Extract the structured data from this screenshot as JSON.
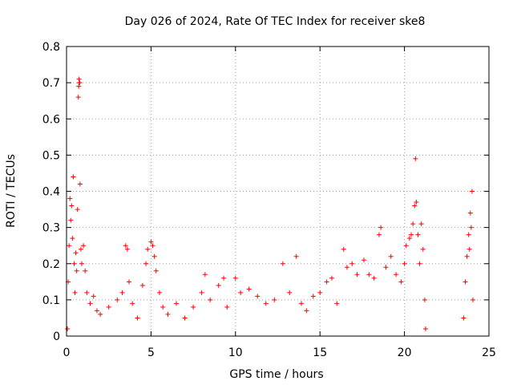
{
  "chart_data": {
    "type": "scatter",
    "title": "Day 026 of 2024, Rate Of TEC Index for receiver ske8",
    "xlabel": "GPS time / hours",
    "ylabel": "ROTI / TECUs",
    "xlim": [
      0,
      25
    ],
    "ylim": [
      0,
      0.8
    ],
    "xticks": [
      "0",
      "5",
      "10",
      "15",
      "20",
      "25"
    ],
    "yticks": [
      "0",
      "0.1",
      "0.2",
      "0.3",
      "0.4",
      "0.5",
      "0.6",
      "0.7",
      "0.8"
    ],
    "xtick_values": [
      0,
      5,
      10,
      15,
      20,
      25
    ],
    "ytick_values": [
      0,
      0.1,
      0.2,
      0.3,
      0.4,
      0.5,
      0.6,
      0.7,
      0.8
    ],
    "grid": true,
    "marker": "+",
    "color": "#ff0000",
    "series": [
      {
        "name": "ROTI",
        "points": [
          [
            0.05,
            0.02
          ],
          [
            0.1,
            0.15
          ],
          [
            0.15,
            0.25
          ],
          [
            0.2,
            0.38
          ],
          [
            0.25,
            0.32
          ],
          [
            0.3,
            0.36
          ],
          [
            0.35,
            0.27
          ],
          [
            0.4,
            0.44
          ],
          [
            0.45,
            0.2
          ],
          [
            0.5,
            0.12
          ],
          [
            0.55,
            0.23
          ],
          [
            0.6,
            0.18
          ],
          [
            0.65,
            0.35
          ],
          [
            0.7,
            0.66
          ],
          [
            0.72,
            0.69
          ],
          [
            0.74,
            0.71
          ],
          [
            0.76,
            0.7
          ],
          [
            0.78,
            0.7
          ],
          [
            0.8,
            0.42
          ],
          [
            0.85,
            0.24
          ],
          [
            0.9,
            0.2
          ],
          [
            1.0,
            0.25
          ],
          [
            1.1,
            0.18
          ],
          [
            1.2,
            0.12
          ],
          [
            1.4,
            0.09
          ],
          [
            1.6,
            0.11
          ],
          [
            1.8,
            0.07
          ],
          [
            2.0,
            0.06
          ],
          [
            2.5,
            0.08
          ],
          [
            3.0,
            0.1
          ],
          [
            3.3,
            0.12
          ],
          [
            3.5,
            0.25
          ],
          [
            3.6,
            0.24
          ],
          [
            3.7,
            0.15
          ],
          [
            3.9,
            0.09
          ],
          [
            4.2,
            0.05
          ],
          [
            4.5,
            0.14
          ],
          [
            4.7,
            0.2
          ],
          [
            4.8,
            0.24
          ],
          [
            5.0,
            0.26
          ],
          [
            5.1,
            0.25
          ],
          [
            5.2,
            0.22
          ],
          [
            5.3,
            0.18
          ],
          [
            5.5,
            0.12
          ],
          [
            5.7,
            0.08
          ],
          [
            6.0,
            0.06
          ],
          [
            6.5,
            0.09
          ],
          [
            7.0,
            0.05
          ],
          [
            7.5,
            0.08
          ],
          [
            8.0,
            0.12
          ],
          [
            8.2,
            0.17
          ],
          [
            8.5,
            0.1
          ],
          [
            9.0,
            0.14
          ],
          [
            9.3,
            0.16
          ],
          [
            9.5,
            0.08
          ],
          [
            10.0,
            0.16
          ],
          [
            10.3,
            0.12
          ],
          [
            10.8,
            0.13
          ],
          [
            11.3,
            0.11
          ],
          [
            11.8,
            0.09
          ],
          [
            12.3,
            0.1
          ],
          [
            12.8,
            0.2
          ],
          [
            13.2,
            0.12
          ],
          [
            13.6,
            0.22
          ],
          [
            13.9,
            0.09
          ],
          [
            14.2,
            0.07
          ],
          [
            14.6,
            0.11
          ],
          [
            15.0,
            0.12
          ],
          [
            15.4,
            0.15
          ],
          [
            15.7,
            0.16
          ],
          [
            16.0,
            0.09
          ],
          [
            16.4,
            0.24
          ],
          [
            16.6,
            0.19
          ],
          [
            16.9,
            0.2
          ],
          [
            17.2,
            0.17
          ],
          [
            17.6,
            0.21
          ],
          [
            17.9,
            0.17
          ],
          [
            18.2,
            0.16
          ],
          [
            18.5,
            0.28
          ],
          [
            18.6,
            0.3
          ],
          [
            18.9,
            0.19
          ],
          [
            19.2,
            0.22
          ],
          [
            19.5,
            0.17
          ],
          [
            19.8,
            0.15
          ],
          [
            20.0,
            0.2
          ],
          [
            20.1,
            0.25
          ],
          [
            20.3,
            0.27
          ],
          [
            20.4,
            0.28
          ],
          [
            20.5,
            0.31
          ],
          [
            20.6,
            0.36
          ],
          [
            20.65,
            0.49
          ],
          [
            20.7,
            0.37
          ],
          [
            20.8,
            0.28
          ],
          [
            20.9,
            0.2
          ],
          [
            21.0,
            0.31
          ],
          [
            21.1,
            0.24
          ],
          [
            21.2,
            0.1
          ],
          [
            21.25,
            0.02
          ],
          [
            23.5,
            0.05
          ],
          [
            23.6,
            0.15
          ],
          [
            23.7,
            0.22
          ],
          [
            23.8,
            0.28
          ],
          [
            23.85,
            0.24
          ],
          [
            23.9,
            0.34
          ],
          [
            23.95,
            0.3
          ],
          [
            24.0,
            0.4
          ],
          [
            24.05,
            0.1
          ]
        ]
      }
    ]
  }
}
